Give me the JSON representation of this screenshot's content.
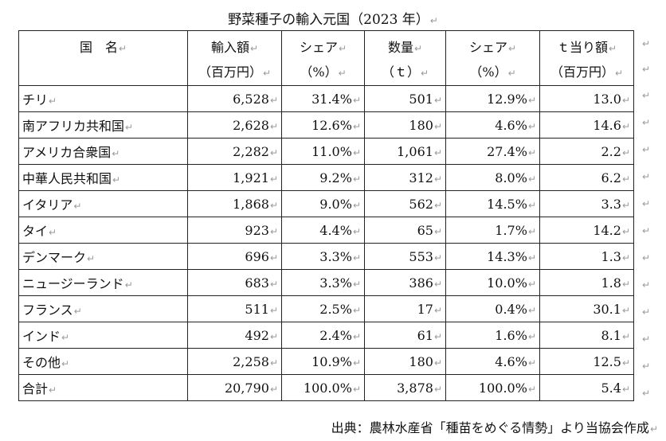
{
  "title": "野菜種子の輸入元国（2023 年）",
  "mark": "↵",
  "headers": [
    {
      "line1": "国　名",
      "line2": ""
    },
    {
      "line1": "輸入額",
      "line2": "（百万円）"
    },
    {
      "line1": "シェア",
      "line2": "（%）"
    },
    {
      "line1": "数量",
      "line2": "（ｔ）"
    },
    {
      "line1": "シェア",
      "line2": "（%）"
    },
    {
      "line1": "ｔ当り額",
      "line2": "（百万円）"
    }
  ],
  "rows": [
    [
      "チリ",
      "6,528",
      "31.4%",
      "501",
      "12.9%",
      "13.0"
    ],
    [
      "南アフリカ共和国",
      "2,628",
      "12.6%",
      "180",
      "4.6%",
      "14.6"
    ],
    [
      "アメリカ合衆国",
      "2,282",
      "11.0%",
      "1,061",
      "27.4%",
      "2.2"
    ],
    [
      "中華人民共和国",
      "1,921",
      "9.2%",
      "312",
      "8.0%",
      "6.2"
    ],
    [
      "イタリア",
      "1,868",
      "9.0%",
      "562",
      "14.5%",
      "3.3"
    ],
    [
      "タイ",
      "923",
      "4.4%",
      "65",
      "1.7%",
      "14.2"
    ],
    [
      "デンマーク",
      "696",
      "3.3%",
      "553",
      "14.3%",
      "1.3"
    ],
    [
      "ニュージーランド",
      "683",
      "3.3%",
      "386",
      "10.0%",
      "1.8"
    ],
    [
      "フランス",
      "511",
      "2.5%",
      "17",
      "0.4%",
      "30.1"
    ],
    [
      "インド",
      "492",
      "2.4%",
      "61",
      "1.6%",
      "8.1"
    ],
    [
      "その他",
      "2,258",
      "10.9%",
      "180",
      "4.6%",
      "12.5"
    ],
    [
      "合計",
      "20,790",
      "100.0%",
      "3,878",
      "100.0%",
      "5.4"
    ]
  ],
  "source": "出典：農林水産省「種苗をめぐる情勢」より当協会作成"
}
